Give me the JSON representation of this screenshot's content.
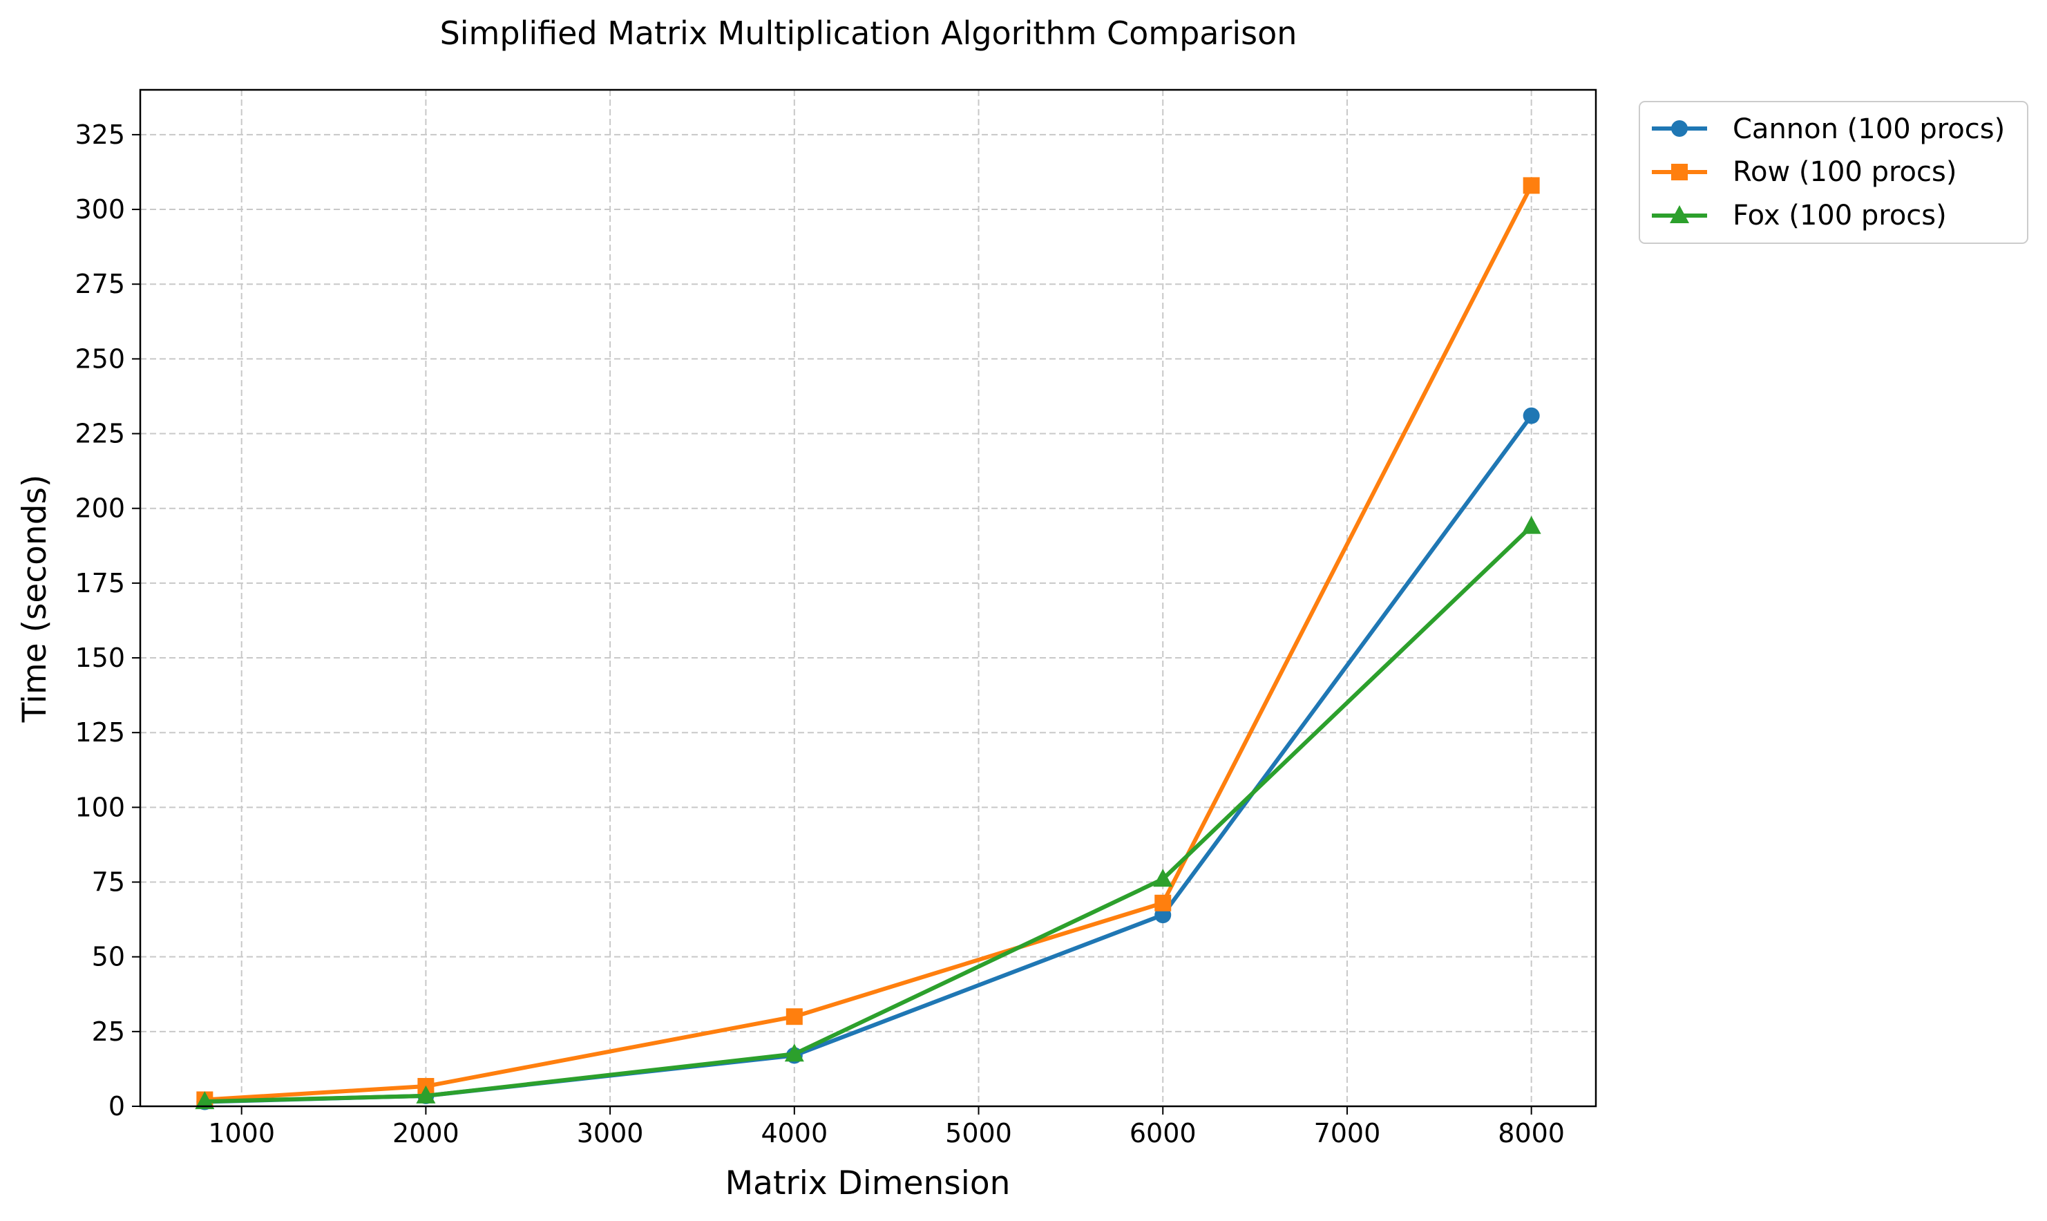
{
  "chart_data": {
    "type": "line",
    "title": "Simplified Matrix Multiplication Algorithm Comparison",
    "xlabel": "Matrix Dimension",
    "ylabel": "Time (seconds)",
    "xlim": [
      450,
      8350
    ],
    "ylim": [
      0,
      340
    ],
    "xticks": [
      1000,
      2000,
      3000,
      4000,
      5000,
      6000,
      7000,
      8000
    ],
    "yticks": [
      0,
      25,
      50,
      75,
      100,
      125,
      150,
      175,
      200,
      225,
      250,
      275,
      300,
      325
    ],
    "grid": true,
    "legend_position": "outside-top-right",
    "x": [
      800,
      2000,
      4000,
      6000,
      8000
    ],
    "series": [
      {
        "name": "Cannon (100 procs)",
        "color": "#1f77b4",
        "marker": "circle",
        "values": [
          1.5,
          3.5,
          17,
          64,
          231
        ]
      },
      {
        "name": "Row (100 procs)",
        "color": "#ff7f0e",
        "marker": "square",
        "values": [
          2.2,
          6.7,
          30,
          68,
          308
        ]
      },
      {
        "name": "Fox (100 procs)",
        "color": "#2ca02c",
        "marker": "triangle",
        "values": [
          1.6,
          3.5,
          17.5,
          76,
          194
        ]
      }
    ]
  }
}
